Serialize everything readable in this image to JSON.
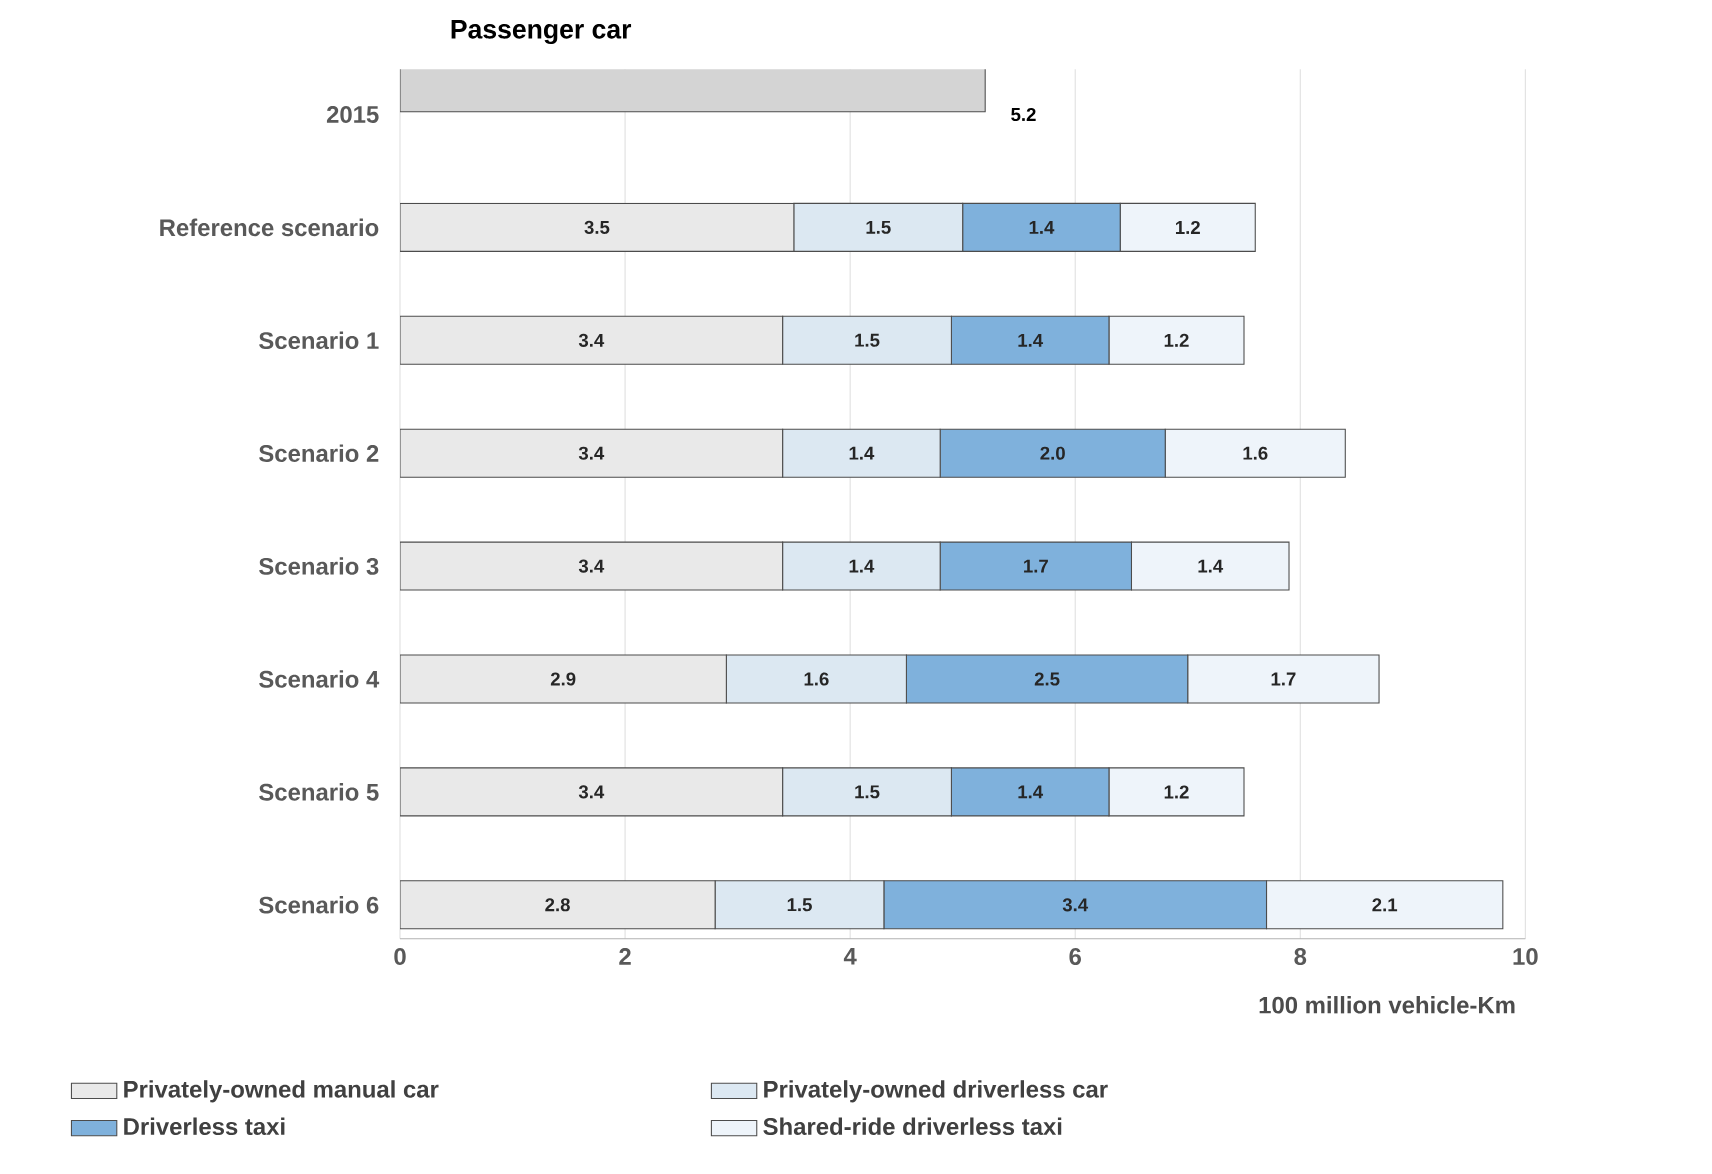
{
  "chart_data": {
    "type": "bar",
    "orientation": "horizontal",
    "stacked": true,
    "title": "Passenger car",
    "xlabel": "100 million vehicle-Km",
    "categories": [
      "2015",
      "Reference scenario",
      "Scenario 1",
      "Scenario 2",
      "Scenario 3",
      "Scenario 4",
      "Scenario 5",
      "Scenario 6"
    ],
    "series": [
      {
        "name": "Privately-owned manual car",
        "color": "#e9e9e9",
        "values": [
          null,
          3.5,
          3.4,
          3.4,
          3.4,
          2.9,
          3.4,
          2.8
        ],
        "value_labels": [
          null,
          "3.5",
          "3.4",
          "3.4",
          "3.4",
          "2.9",
          "3.4",
          "2.8"
        ]
      },
      {
        "name": "Privately-owned driverless car",
        "color": "#dce8f2",
        "values": [
          null,
          1.5,
          1.5,
          1.4,
          1.4,
          1.6,
          1.5,
          1.5
        ],
        "value_labels": [
          null,
          "1.5",
          "1.5",
          "1.4",
          "1.4",
          "1.6",
          "1.5",
          "1.5"
        ]
      },
      {
        "name": "Driverless taxi",
        "color": "#7fb1dc",
        "values": [
          null,
          1.4,
          1.4,
          2.0,
          1.7,
          2.5,
          1.4,
          3.4
        ],
        "value_labels": [
          null,
          "1.4",
          "1.4",
          "2.0",
          "1.7",
          "2.5",
          "1.4",
          "3.4"
        ]
      },
      {
        "name": "Shared-ride driverless taxi",
        "color": "#eef4fa",
        "values": [
          null,
          1.2,
          1.2,
          1.6,
          1.4,
          1.7,
          1.2,
          2.1
        ],
        "value_labels": [
          null,
          "1.2",
          "1.2",
          "1.6",
          "1.4",
          "1.7",
          "1.2",
          "2.1"
        ]
      },
      {
        "color": "#d4d4d4",
        "values": [
          5.2,
          null,
          null,
          null,
          null,
          null,
          null,
          null
        ],
        "value_labels": [
          "5.2",
          null,
          null,
          null,
          null,
          null,
          null,
          null
        ]
      }
    ],
    "xlim": [
      0,
      10
    ],
    "xticks": [
      0,
      2,
      4,
      6,
      8,
      10
    ],
    "grid": "x",
    "legend": "bottom"
  }
}
